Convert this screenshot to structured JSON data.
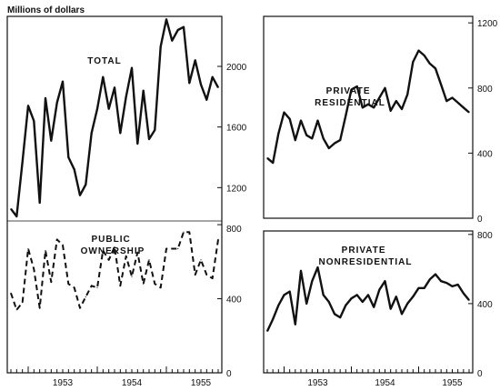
{
  "unit_label": "Millions of dollars",
  "chart_data": [
    {
      "type": "line",
      "title": "TOTAL",
      "x": [
        "1952-10",
        "1952-11",
        "1952-12",
        "1953-01",
        "1953-02",
        "1953-03",
        "1953-04",
        "1953-05",
        "1953-06",
        "1953-07",
        "1953-08",
        "1953-09",
        "1953-10",
        "1953-11",
        "1953-12",
        "1954-01",
        "1954-02",
        "1954-03",
        "1954-04",
        "1954-05",
        "1954-06",
        "1954-07",
        "1954-08",
        "1954-09",
        "1954-10",
        "1954-11",
        "1954-12",
        "1955-01",
        "1955-02",
        "1955-03",
        "1955-04",
        "1955-05",
        "1955-06",
        "1955-07",
        "1955-08",
        "1955-09",
        "1955-10"
      ],
      "values": [
        1060,
        1010,
        1370,
        1740,
        1640,
        1100,
        1790,
        1510,
        1760,
        1900,
        1400,
        1320,
        1150,
        1220,
        1560,
        1720,
        1930,
        1720,
        1860,
        1560,
        1800,
        1990,
        1490,
        1840,
        1520,
        1580,
        2130,
        2310,
        2170,
        2240,
        2260,
        1890,
        2040,
        1880,
        1780,
        1930,
        1860
      ],
      "yticks": [
        1200,
        1600,
        2000
      ],
      "ylim": [
        980,
        2330
      ],
      "ytick_side": "right",
      "x_tick_labels": [],
      "line_style": "solid"
    },
    {
      "type": "line",
      "title": "PUBLIC OWNERSHIP",
      "x": [
        "1952-10",
        "1952-11",
        "1952-12",
        "1953-01",
        "1953-02",
        "1953-03",
        "1953-04",
        "1953-05",
        "1953-06",
        "1953-07",
        "1953-08",
        "1953-09",
        "1953-10",
        "1953-11",
        "1953-12",
        "1954-01",
        "1954-02",
        "1954-03",
        "1954-04",
        "1954-05",
        "1954-06",
        "1954-07",
        "1954-08",
        "1954-09",
        "1954-10",
        "1954-11",
        "1954-12",
        "1955-01",
        "1955-02",
        "1955-03",
        "1955-04",
        "1955-05",
        "1955-06",
        "1955-07",
        "1955-08",
        "1955-09",
        "1955-10"
      ],
      "values": [
        430,
        340,
        380,
        670,
        560,
        350,
        660,
        490,
        720,
        690,
        480,
        460,
        350,
        410,
        470,
        460,
        660,
        610,
        680,
        470,
        630,
        520,
        650,
        480,
        610,
        480,
        460,
        670,
        670,
        670,
        760,
        760,
        530,
        610,
        530,
        510,
        720
      ],
      "yticks": [
        0,
        400,
        800
      ],
      "ylim": [
        0,
        820
      ],
      "ytick_side": "right",
      "x_tick_labels": [
        "1953",
        "1954",
        "1955"
      ],
      "line_style": "dashed"
    },
    {
      "type": "line",
      "title": "PRIVATE RESIDENTIAL",
      "x": [
        "1952-10",
        "1952-11",
        "1952-12",
        "1953-01",
        "1953-02",
        "1953-03",
        "1953-04",
        "1953-05",
        "1953-06",
        "1953-07",
        "1953-08",
        "1953-09",
        "1953-10",
        "1953-11",
        "1953-12",
        "1954-01",
        "1954-02",
        "1954-03",
        "1954-04",
        "1954-05",
        "1954-06",
        "1954-07",
        "1954-08",
        "1954-09",
        "1954-10",
        "1954-11",
        "1954-12",
        "1955-01",
        "1955-02",
        "1955-03",
        "1955-04",
        "1955-05",
        "1955-06",
        "1955-07",
        "1955-08",
        "1955-09",
        "1955-10"
      ],
      "values": [
        370,
        340,
        520,
        650,
        610,
        480,
        600,
        510,
        490,
        600,
        490,
        430,
        460,
        480,
        630,
        790,
        810,
        680,
        700,
        680,
        740,
        800,
        660,
        720,
        670,
        760,
        960,
        1030,
        1000,
        950,
        920,
        820,
        720,
        740,
        710,
        680,
        650
      ],
      "yticks": [
        0,
        400,
        800,
        1200
      ],
      "ylim": [
        0,
        1240
      ],
      "ytick_side": "right",
      "x_tick_labels": [],
      "line_style": "solid"
    },
    {
      "type": "line",
      "title": "PRIVATE NONRESIDENTIAL",
      "x": [
        "1952-10",
        "1952-11",
        "1952-12",
        "1953-01",
        "1953-02",
        "1953-03",
        "1953-04",
        "1953-05",
        "1953-06",
        "1953-07",
        "1953-08",
        "1953-09",
        "1953-10",
        "1953-11",
        "1953-12",
        "1954-01",
        "1954-02",
        "1954-03",
        "1954-04",
        "1954-05",
        "1954-06",
        "1954-07",
        "1954-08",
        "1954-09",
        "1954-10",
        "1954-11",
        "1954-12",
        "1955-01",
        "1955-02",
        "1955-03",
        "1955-04",
        "1955-05",
        "1955-06",
        "1955-07",
        "1955-08",
        "1955-09",
        "1955-10"
      ],
      "values": [
        240,
        310,
        390,
        450,
        470,
        280,
        590,
        400,
        530,
        610,
        450,
        410,
        340,
        320,
        390,
        430,
        450,
        410,
        450,
        380,
        480,
        530,
        370,
        440,
        340,
        400,
        440,
        490,
        490,
        540,
        570,
        530,
        520,
        500,
        510,
        460,
        420
      ],
      "yticks": [
        0,
        400,
        800
      ],
      "ylim": [
        0,
        820
      ],
      "ytick_side": "right",
      "x_tick_labels": [
        "1953",
        "1954",
        "1955"
      ],
      "line_style": "solid"
    }
  ]
}
